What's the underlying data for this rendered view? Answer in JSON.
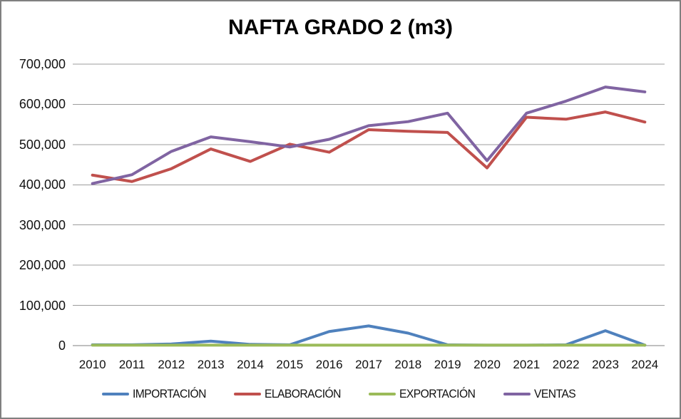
{
  "title": "NAFTA GRADO 2 (m3)",
  "chart_data": {
    "type": "line",
    "title": "NAFTA GRADO 2 (m3)",
    "categories": [
      "2010",
      "2011",
      "2012",
      "2013",
      "2014",
      "2015",
      "2016",
      "2017",
      "2018",
      "2019",
      "2020",
      "2021",
      "2022",
      "2023",
      "2024"
    ],
    "series": [
      {
        "name": "IMPORTACIÓN",
        "color": "#4F81BD",
        "values": [
          2000,
          2000,
          4000,
          11000,
          3000,
          2000,
          35000,
          49000,
          31000,
          2000,
          1000,
          1000,
          2000,
          37000,
          1000
        ]
      },
      {
        "name": "ELABORACIÓN",
        "color": "#C0504D",
        "values": [
          424000,
          408000,
          440000,
          489000,
          458000,
          501000,
          481000,
          537000,
          533000,
          530000,
          442000,
          568000,
          563000,
          581000,
          556000
        ]
      },
      {
        "name": "EXPORTACIÓN",
        "color": "#9BBB59",
        "values": [
          1000,
          1000,
          1000,
          1000,
          1000,
          1000,
          1000,
          1000,
          1000,
          1000,
          1000,
          1000,
          1000,
          1000,
          1000
        ]
      },
      {
        "name": "VENTAS",
        "color": "#8064A2",
        "values": [
          403000,
          425000,
          483000,
          519000,
          507000,
          494000,
          513000,
          547000,
          557000,
          578000,
          460000,
          578000,
          608000,
          643000,
          631000
        ]
      }
    ],
    "ylim": [
      0,
      700000
    ],
    "ytick_step": 100000,
    "ytick_labels": [
      "0",
      "100,000",
      "200,000",
      "300,000",
      "400,000",
      "500,000",
      "600,000",
      "700,000"
    ],
    "grid": true,
    "legend_position": "bottom"
  },
  "colors": {
    "background": "#FFFFFF",
    "border": "#808080",
    "gridline": "#9C9C9C",
    "axis": "#808080",
    "text": "#000000"
  }
}
